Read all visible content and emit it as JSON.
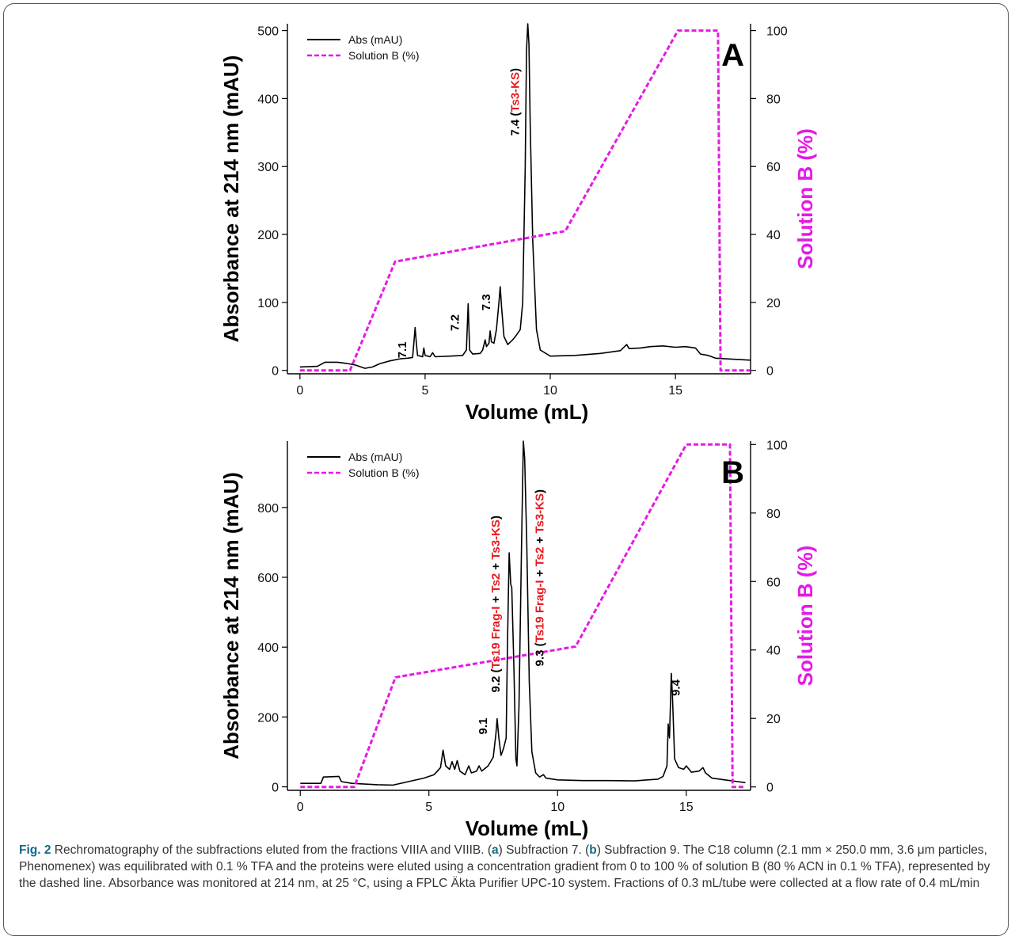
{
  "figure": {
    "caption": {
      "fig_ref": "Fig. 2",
      "segments": [
        {
          "t": " Rechromatography of the subfractions eluted from the fractions VIIIA and VIIIB. (",
          "b": false
        },
        {
          "t": "a",
          "b": true
        },
        {
          "t": ") Subfraction 7. (",
          "b": false
        },
        {
          "t": "b",
          "b": true
        },
        {
          "t": ") Subfraction 9. The C18 column (2.1 mm × 250.0 mm, 3.6 μm particles, Phenomenex) was equilibrated with 0.1 % TFA and the proteins were eluted using a concentration gradient from 0 to 100 % of solution B (80 % ACN in 0.1 % TFA), represented by the dashed line. Absorbance was monitored at 214 nm, at 25 °C, using a FPLC Äkta Purifier UPC-10 system. Fractions of 0.3 mL/tube were collected at a flow rate of 0.4 mL/min",
          "b": false
        }
      ]
    }
  },
  "colors": {
    "abs_line": "#000000",
    "solution_b_line": "#e619e6",
    "label_red": "#e8191f",
    "caption_ref": "#0d6b8a"
  },
  "chart_data": [
    {
      "type": "line",
      "panel_label": "A",
      "xlabel": "Volume (mL)",
      "ylabel": "Absorbance at 214 nm (mAU)",
      "y2label": "Solution B (%)",
      "xlim": [
        -0.5,
        18
      ],
      "ylim": [
        -5,
        510
      ],
      "y2lim": [
        -1,
        102
      ],
      "xticks": [
        0,
        5,
        10,
        15
      ],
      "yticks": [
        0,
        100,
        200,
        300,
        400,
        500
      ],
      "y2ticks": [
        0,
        20,
        40,
        60,
        80,
        100
      ],
      "legend": {
        "placement": "top-left",
        "entries": [
          "Abs (mAU)",
          "Solution B (%)"
        ]
      },
      "series": [
        {
          "name": "Abs (mAU)",
          "axis": "left",
          "points": [
            [
              0,
              5
            ],
            [
              0.7,
              6
            ],
            [
              1.0,
              12
            ],
            [
              1.5,
              12
            ],
            [
              1.9,
              10
            ],
            [
              2.2,
              8
            ],
            [
              2.6,
              3
            ],
            [
              2.9,
              5
            ],
            [
              3.2,
              10
            ],
            [
              3.6,
              14
            ],
            [
              4.0,
              17
            ],
            [
              4.3,
              18
            ],
            [
              4.5,
              19
            ],
            [
              4.55,
              40
            ],
            [
              4.6,
              63
            ],
            [
              4.65,
              40
            ],
            [
              4.7,
              22
            ],
            [
              4.9,
              20
            ],
            [
              4.95,
              33
            ],
            [
              5.0,
              22
            ],
            [
              5.2,
              20
            ],
            [
              5.3,
              26
            ],
            [
              5.4,
              20
            ],
            [
              6.0,
              21
            ],
            [
              6.5,
              22
            ],
            [
              6.65,
              30
            ],
            [
              6.72,
              98
            ],
            [
              6.78,
              30
            ],
            [
              6.9,
              24
            ],
            [
              7.2,
              25
            ],
            [
              7.3,
              30
            ],
            [
              7.4,
              45
            ],
            [
              7.45,
              35
            ],
            [
              7.55,
              40
            ],
            [
              7.6,
              58
            ],
            [
              7.65,
              42
            ],
            [
              7.75,
              40
            ],
            [
              7.85,
              60
            ],
            [
              7.95,
              100
            ],
            [
              8.0,
              123
            ],
            [
              8.05,
              95
            ],
            [
              8.15,
              50
            ],
            [
              8.3,
              38
            ],
            [
              8.5,
              45
            ],
            [
              8.65,
              52
            ],
            [
              8.8,
              60
            ],
            [
              8.9,
              100
            ],
            [
              9.0,
              300
            ],
            [
              9.05,
              470
            ],
            [
              9.1,
              510
            ],
            [
              9.15,
              480
            ],
            [
              9.2,
              360
            ],
            [
              9.3,
              190
            ],
            [
              9.45,
              60
            ],
            [
              9.6,
              30
            ],
            [
              10.0,
              21
            ],
            [
              11.0,
              22
            ],
            [
              12.0,
              25
            ],
            [
              12.8,
              29
            ],
            [
              13.05,
              38
            ],
            [
              13.15,
              32
            ],
            [
              13.6,
              33
            ],
            [
              14.0,
              35
            ],
            [
              14.5,
              36
            ],
            [
              15.0,
              34
            ],
            [
              15.4,
              35
            ],
            [
              15.8,
              33
            ],
            [
              16.0,
              24
            ],
            [
              16.3,
              22
            ],
            [
              16.6,
              18
            ],
            [
              17.0,
              17
            ],
            [
              18.0,
              15
            ]
          ]
        },
        {
          "name": "Solution B (%)",
          "axis": "right",
          "points": [
            [
              0,
              0
            ],
            [
              2.0,
              0
            ],
            [
              3.8,
              32
            ],
            [
              10.6,
              41
            ],
            [
              15.1,
              100
            ],
            [
              16.7,
              100
            ],
            [
              16.8,
              0
            ],
            [
              18,
              0
            ]
          ]
        }
      ],
      "annotations": [
        {
          "x": 4.25,
          "y": 18,
          "parts": [
            {
              "t": "7.1",
              "red": false
            }
          ]
        },
        {
          "x": 6.35,
          "y": 58,
          "parts": [
            {
              "t": "7.2",
              "red": false
            }
          ]
        },
        {
          "x": 7.6,
          "y": 88,
          "parts": [
            {
              "t": "7.3",
              "red": false
            }
          ]
        },
        {
          "x": 8.75,
          "y": 345,
          "parts": [
            {
              "t": "7.4 (",
              "red": false
            },
            {
              "t": "Ts3-KS",
              "red": true
            },
            {
              "t": ")",
              "red": false
            }
          ]
        }
      ]
    },
    {
      "type": "line",
      "panel_label": "B",
      "xlabel": "Volume (mL)",
      "ylabel": "Absorbance at 214 nm (mAU)",
      "y2label": "Solution B (%)",
      "xlim": [
        -0.5,
        17.5
      ],
      "ylim": [
        -10,
        990
      ],
      "y2lim": [
        -1,
        101
      ],
      "xticks": [
        0,
        5,
        10,
        15
      ],
      "yticks": [
        0,
        200,
        400,
        600,
        800
      ],
      "y2ticks": [
        0,
        20,
        40,
        60,
        80,
        100
      ],
      "legend": {
        "placement": "top-left",
        "entries": [
          "Abs (mAU)",
          "Solution B (%)"
        ]
      },
      "series": [
        {
          "name": "Abs (mAU)",
          "axis": "left",
          "points": [
            [
              0,
              10
            ],
            [
              0.8,
              10
            ],
            [
              0.9,
              28
            ],
            [
              1.5,
              30
            ],
            [
              1.6,
              15
            ],
            [
              2.0,
              10
            ],
            [
              3.0,
              6
            ],
            [
              3.6,
              5
            ],
            [
              4.2,
              15
            ],
            [
              4.8,
              25
            ],
            [
              5.2,
              35
            ],
            [
              5.45,
              55
            ],
            [
              5.55,
              105
            ],
            [
              5.65,
              60
            ],
            [
              5.8,
              50
            ],
            [
              5.9,
              72
            ],
            [
              6.0,
              50
            ],
            [
              6.1,
              75
            ],
            [
              6.2,
              45
            ],
            [
              6.4,
              35
            ],
            [
              6.55,
              60
            ],
            [
              6.65,
              40
            ],
            [
              6.85,
              45
            ],
            [
              6.95,
              60
            ],
            [
              7.05,
              45
            ],
            [
              7.3,
              60
            ],
            [
              7.5,
              85
            ],
            [
              7.6,
              150
            ],
            [
              7.65,
              195
            ],
            [
              7.72,
              140
            ],
            [
              7.8,
              90
            ],
            [
              7.9,
              110
            ],
            [
              8.0,
              140
            ],
            [
              8.05,
              400
            ],
            [
              8.12,
              670
            ],
            [
              8.18,
              580
            ],
            [
              8.22,
              570
            ],
            [
              8.3,
              350
            ],
            [
              8.38,
              80
            ],
            [
              8.42,
              60
            ],
            [
              8.5,
              230
            ],
            [
              8.6,
              700
            ],
            [
              8.67,
              990
            ],
            [
              8.72,
              940
            ],
            [
              8.8,
              700
            ],
            [
              8.9,
              300
            ],
            [
              9.0,
              100
            ],
            [
              9.15,
              40
            ],
            [
              9.3,
              28
            ],
            [
              9.45,
              35
            ],
            [
              9.55,
              25
            ],
            [
              10.0,
              20
            ],
            [
              11.0,
              18
            ],
            [
              12.0,
              18
            ],
            [
              13.0,
              17
            ],
            [
              13.5,
              20
            ],
            [
              13.9,
              22
            ],
            [
              14.1,
              30
            ],
            [
              14.25,
              60
            ],
            [
              14.3,
              180
            ],
            [
              14.35,
              140
            ],
            [
              14.42,
              325
            ],
            [
              14.47,
              250
            ],
            [
              14.55,
              80
            ],
            [
              14.7,
              55
            ],
            [
              14.9,
              50
            ],
            [
              15.0,
              60
            ],
            [
              15.2,
              42
            ],
            [
              15.5,
              45
            ],
            [
              15.65,
              55
            ],
            [
              15.75,
              40
            ],
            [
              16.0,
              25
            ],
            [
              16.5,
              20
            ],
            [
              17.0,
              15
            ],
            [
              17.3,
              12
            ]
          ]
        },
        {
          "name": "Solution B (%)",
          "axis": "right",
          "points": [
            [
              0,
              0
            ],
            [
              2.1,
              0
            ],
            [
              3.7,
              32
            ],
            [
              10.7,
              41
            ],
            [
              15.0,
              100
            ],
            [
              16.7,
              100
            ],
            [
              16.8,
              0
            ],
            [
              17.3,
              0
            ]
          ]
        }
      ],
      "annotations": [
        {
          "x": 7.25,
          "y": 150,
          "parts": [
            {
              "t": "9.1",
              "red": false
            }
          ]
        },
        {
          "x": 7.75,
          "y": 270,
          "parts": [
            {
              "t": "9.2 (",
              "red": false
            },
            {
              "t": "Ts19 Frag-I",
              "red": true
            },
            {
              "t": " + ",
              "red": false
            },
            {
              "t": "Ts2",
              "red": true
            },
            {
              "t": " + ",
              "red": false
            },
            {
              "t": "Ts3-KS",
              "red": true
            },
            {
              "t": ")",
              "red": false
            }
          ]
        },
        {
          "x": 9.45,
          "y": 345,
          "parts": [
            {
              "t": "9.3 (",
              "red": false
            },
            {
              "t": "Ts19 Frag-I",
              "red": true
            },
            {
              "t": " + ",
              "red": false
            },
            {
              "t": "Ts2",
              "red": true
            },
            {
              "t": " + ",
              "red": false
            },
            {
              "t": "Ts3-KS",
              "red": true
            },
            {
              "t": ")",
              "red": false
            }
          ]
        },
        {
          "x": 14.75,
          "y": 260,
          "parts": [
            {
              "t": "9.4",
              "red": false
            }
          ]
        }
      ]
    }
  ]
}
